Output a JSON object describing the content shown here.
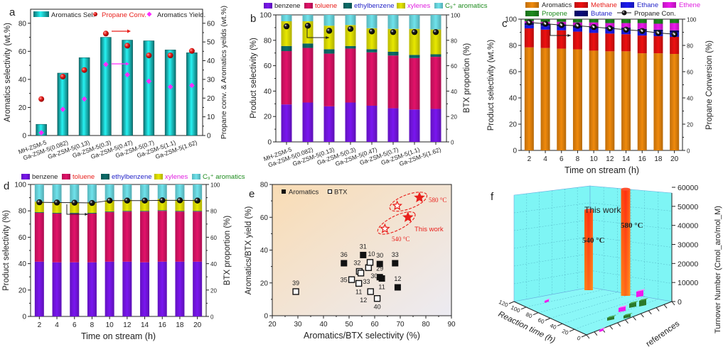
{
  "figure": {
    "panel_labels": [
      "a",
      "b",
      "c",
      "d",
      "e",
      "f"
    ]
  },
  "chart_data": [
    {
      "panel": "a",
      "type": "bar",
      "categories": [
        "MH-ZSM-5",
        "Ga-ZSM-5(0.082)",
        "Ga-ZSM-5(0.13)",
        "Ga-ZSM-5(0.3)",
        "Ga-ZSM-5(0.47)",
        "Ga-ZSM-5(0.7)",
        "Ga-ZSM-5(1.1)",
        "Ga-ZSM-5(1.62)"
      ],
      "series": [
        {
          "name": "Aromatics Sel.",
          "axis": "left",
          "kind": "bar",
          "color": "#19d6d6",
          "values": [
            8,
            44.5,
            55.5,
            70,
            68,
            67.5,
            61,
            59
          ]
        },
        {
          "name": "Propane Conv.",
          "axis": "right",
          "kind": "scatter",
          "marker": "circle",
          "color": "#e8201c",
          "values": [
            19.5,
            31.5,
            35,
            54.5,
            48,
            42.8,
            42.8,
            45.2
          ]
        },
        {
          "name": "Aromatics Yield.",
          "axis": "right",
          "kind": "scatter",
          "marker": "diamond",
          "color": "#ff2bff",
          "values": [
            1.5,
            14,
            19.5,
            38,
            32.5,
            29,
            26,
            26.8
          ]
        }
      ],
      "legend": [
        "Aromatics Sel.",
        "Propane Conv.",
        "Aromatics Yield."
      ],
      "legend_colors": [
        "#222222",
        "#e8201c",
        "#222222"
      ],
      "xlabel": "",
      "ylabel": "Aromatics selectivity (wt.%)",
      "y2label": "Propane conv. & Aromatics yeilds (wt.%)",
      "ylim": [
        0,
        90
      ],
      "y2lim": [
        0,
        67.5
      ],
      "yticks": [
        0,
        20,
        40,
        60,
        80
      ],
      "y2ticks": [
        0,
        10,
        20,
        30,
        40,
        50,
        60
      ],
      "annotations": [
        "arrow-right (Propane Conv. -> right axis)",
        "arrow-right (Aromatics Yield -> right axis)"
      ]
    },
    {
      "panel": "b",
      "type": "bar",
      "stacked": true,
      "categories": [
        "MH-ZSM-5",
        "Ga-ZSM-5(0.082)",
        "Ga-ZSM-5(0.13)",
        "Ga-ZSM-5(0.3)",
        "Ga-ZSM-5(0.47)",
        "Ga-ZSM-5(0.7)",
        "Ga-ZSM-5(1.1)",
        "Ga-ZSM-5(1.62)"
      ],
      "series": [
        {
          "name": "benzene",
          "color": "#7a16f0",
          "values": [
            29.5,
            31,
            28,
            31,
            28.5,
            26.5,
            25.5,
            26
          ]
        },
        {
          "name": "toluene",
          "color": "#e3126a",
          "values": [
            42,
            43,
            41.5,
            42.5,
            42,
            41.5,
            40.5,
            41
          ]
        },
        {
          "name": "ethylbenzene",
          "color": "#0c6e6a",
          "values": [
            4,
            3.5,
            3.5,
            2,
            2.5,
            3,
            2.5,
            2
          ]
        },
        {
          "name": "xylenes",
          "color": "#e8e800",
          "values": [
            19.5,
            17.5,
            18.5,
            16.5,
            16.5,
            18,
            20.5,
            19.5
          ]
        },
        {
          "name": "C9+ aromatics",
          "color": "#6fe3ec",
          "values": [
            5,
            5,
            8.5,
            8,
            10.5,
            11,
            11,
            11.5
          ]
        }
      ],
      "line": {
        "name": "BTX proportion",
        "axis": "right",
        "values": [
          91,
          91.5,
          87.5,
          89,
          87,
          86.5,
          86.5,
          86.5
        ]
      },
      "legend": [
        "benzene",
        "toluene",
        "ethylbenzene",
        "xylenes",
        "C9+ aromatics"
      ],
      "legend_text_colors": [
        "#222222",
        "#e8201c",
        "#2424c8",
        "#e020e0",
        "#1c8a1c"
      ],
      "ylabel": "Product selectivity (%)",
      "y2label": "BTX proportion (%)",
      "ylim": [
        0,
        100
      ],
      "y2lim": [
        0,
        100
      ],
      "yticks": [
        0,
        20,
        40,
        60,
        80,
        100
      ],
      "y2ticks": [
        0,
        20,
        40,
        60,
        80,
        100
      ]
    },
    {
      "panel": "c",
      "type": "bar",
      "stacked": true,
      "categories": [
        "2",
        "4",
        "6",
        "8",
        "10",
        "12",
        "14",
        "16",
        "18",
        "20"
      ],
      "series": [
        {
          "name": "Aromatics",
          "color": "#f08a0c",
          "values": [
            78.5,
            78,
            77.5,
            77,
            76,
            75.5,
            75.5,
            74,
            74,
            73.5
          ]
        },
        {
          "name": "Methane",
          "color": "#ee1010",
          "values": [
            14.5,
            14,
            14,
            13.5,
            13.5,
            13.5,
            13,
            13.5,
            13,
            13
          ]
        },
        {
          "name": "Ethane",
          "color": "#1c1cf0",
          "values": [
            2.5,
            3,
            3,
            3,
            3.5,
            3.5,
            3.5,
            3.5,
            3.5,
            3.5
          ]
        },
        {
          "name": "Butane",
          "color": "#08087a",
          "values": [
            1.5,
            1.5,
            1.5,
            1.5,
            1.5,
            1.5,
            1.5,
            1.5,
            1.5,
            1.5
          ]
        },
        {
          "name": "Ethene",
          "color": "#ee18ee",
          "values": [
            1.5,
            1.5,
            2,
            2.5,
            3,
            3,
            3.5,
            4.5,
            4.5,
            5.5
          ]
        },
        {
          "name": "Propene",
          "color": "#1e8a1e",
          "values": [
            1.5,
            2,
            2,
            2.5,
            2.5,
            3,
            3,
            3,
            3.5,
            3
          ]
        }
      ],
      "line": {
        "name": "Propane Con.",
        "axis": "right",
        "values": [
          97.5,
          96.5,
          95.5,
          95,
          94,
          93,
          92,
          91,
          89.5,
          88.5
        ]
      },
      "legend": [
        "Aromatics",
        "Methane",
        "Ethane",
        "Ethene",
        "Propene",
        "Butane",
        "Propane Con."
      ],
      "legend_text_colors": [
        "#222222",
        "#e8201c",
        "#2424c8",
        "#e020e0",
        "#1c8a1c",
        "#2424c8",
        "#222222"
      ],
      "xlabel": "Time on stream (h)",
      "ylabel": "Product selectivity (wt.%)",
      "y2label": "Propane Conversion (%)",
      "ylim": [
        0,
        100
      ],
      "y2lim": [
        0,
        100
      ],
      "yticks": [
        0,
        20,
        40,
        60,
        80,
        100
      ],
      "y2ticks": [
        0,
        20,
        40,
        60,
        80,
        100
      ]
    },
    {
      "panel": "d",
      "type": "bar",
      "stacked": true,
      "categories": [
        "2",
        "4",
        "6",
        "8",
        "10",
        "12",
        "14",
        "16",
        "18",
        "20"
      ],
      "series": [
        {
          "name": "benzene",
          "color": "#7a16f0",
          "values": [
            41.5,
            41,
            41,
            41,
            41.5,
            41.5,
            41,
            41.5,
            41.5,
            41.5
          ]
        },
        {
          "name": "toluene",
          "color": "#e3126a",
          "values": [
            37,
            37,
            37,
            37,
            37.5,
            38,
            38.5,
            38.5,
            38,
            38
          ]
        },
        {
          "name": "ethylbenzene",
          "color": "#0c6e6a",
          "values": [
            0.5,
            0.5,
            0.5,
            0.5,
            0.5,
            0.5,
            0.5,
            0.5,
            0.5,
            0.5
          ]
        },
        {
          "name": "xylenes",
          "color": "#e8e800",
          "values": [
            8,
            8,
            8,
            8,
            8.5,
            8.5,
            8,
            8.5,
            8.5,
            8.5
          ]
        },
        {
          "name": "C9+ aromatics",
          "color": "#6fe3ec",
          "values": [
            13,
            13.5,
            13.5,
            13.5,
            12,
            11.5,
            12,
            11,
            11.5,
            11.5
          ]
        }
      ],
      "line": {
        "name": "BTX proportion",
        "axis": "right",
        "values": [
          86.5,
          86.3,
          86.2,
          86,
          87.8,
          87.8,
          87.8,
          88,
          88,
          87.8
        ]
      },
      "legend": [
        "benzene",
        "toluene",
        "ethylbenzene",
        "xylenes",
        "C9+ aromatics"
      ],
      "legend_text_colors": [
        "#222222",
        "#e8201c",
        "#2424c8",
        "#e020e0",
        "#1c8a1c"
      ],
      "xlabel": "Time on stream (h)",
      "ylabel": "Product selectivity (%)",
      "y2label": "BTX proportion (%)",
      "ylim": [
        0,
        100
      ],
      "y2lim": [
        0,
        100
      ],
      "yticks": [
        0,
        20,
        40,
        60,
        80,
        100
      ],
      "y2ticks": [
        0,
        20,
        40,
        60,
        80,
        100
      ]
    },
    {
      "panel": "e",
      "type": "scatter",
      "series": [
        {
          "name": "Aromatics",
          "marker": "filled-square",
          "points": [
            {
              "x": 48,
              "y": 32,
              "label": "36"
            },
            {
              "x": 55.5,
              "y": 37,
              "label": "31"
            },
            {
              "x": 62,
              "y": 31.5,
              "label": "30"
            },
            {
              "x": 68,
              "y": 32,
              "label": "33"
            },
            {
              "x": 62,
              "y": 23.5,
              "label": "29"
            },
            {
              "x": 62.8,
              "y": 22.7,
              "label": "11"
            },
            {
              "x": 69,
              "y": 17.3,
              "label": "12"
            }
          ]
        },
        {
          "name": "BTX",
          "marker": "open-square",
          "points": [
            {
              "x": 29.2,
              "y": 14.7,
              "label": "39"
            },
            {
              "x": 51,
              "y": 22,
              "label": "35"
            },
            {
              "x": 54,
              "y": 27,
              "label": "32"
            },
            {
              "x": 54.6,
              "y": 26,
              "label": "33"
            },
            {
              "x": 57.6,
              "y": 29.3,
              "label": "30"
            },
            {
              "x": 58.2,
              "y": 32.5,
              "label": "10"
            },
            {
              "x": 53.8,
              "y": 19.7,
              "label": "11"
            },
            {
              "x": 58.4,
              "y": 14.7,
              "label": "12"
            },
            {
              "x": 61,
              "y": 10.5,
              "label": "40"
            }
          ]
        },
        {
          "name": "This work (Aromatics)",
          "marker": "filled-star",
          "color": "#e8201c",
          "points": [
            {
              "x": 73,
              "y": 60,
              "label": "540 °C"
            },
            {
              "x": 77.5,
              "y": 72,
              "label": "580 °C"
            }
          ]
        },
        {
          "name": "This work (BTX)",
          "marker": "open-star",
          "color": "#e8201c",
          "points": [
            {
              "x": 64,
              "y": 53,
              "label": "540 °C"
            },
            {
              "x": 68.8,
              "y": 67,
              "label": "580 °C"
            }
          ]
        }
      ],
      "annotations": [
        "580 °C",
        "This work",
        "540 °C"
      ],
      "legend": [
        "Aromatics",
        "BTX"
      ],
      "xlabel": "Aromatics/BTX selectivity (%)",
      "ylabel": "Aromatics/BTX yield (%)",
      "xlim": [
        20,
        90
      ],
      "ylim": [
        0,
        80
      ],
      "xticks": [
        20,
        30,
        40,
        50,
        60,
        70,
        80,
        90
      ],
      "yticks": [
        0,
        20,
        40,
        60,
        80
      ]
    },
    {
      "panel": "f",
      "type": "bar",
      "is_3d": true,
      "series": [
        {
          "name": "This work",
          "color": "#ff5a14",
          "points": [
            {
              "label": "540 °C",
              "reaction_time_h": 60,
              "tof": 48000
            },
            {
              "label": "580 °C",
              "reaction_time_h": 30,
              "tof": 59000
            }
          ]
        },
        {
          "name": "references",
          "points": [
            {
              "color": "#ee18ee",
              "reaction_time_h": 110,
              "tof": 500
            },
            {
              "color": "#ee18ee",
              "reaction_time_h": 10,
              "tof": 500
            },
            {
              "color": "#ee18ee",
              "reaction_time_h": 15,
              "tof": 3000
            },
            {
              "color": "#ee18ee",
              "reaction_time_h": 5,
              "tof": 4000
            },
            {
              "color": "#2a7a2a",
              "reaction_time_h": 10,
              "tof": 1500
            },
            {
              "color": "#2a7a2a",
              "reaction_time_h": 8,
              "tof": 2000
            },
            {
              "color": "#2a7a2a",
              "reaction_time_h": 5,
              "tof": 3500
            },
            {
              "color": "#2a7a2a",
              "reaction_time_h": 3,
              "tof": 4000
            }
          ]
        }
      ],
      "annotations": [
        "This work",
        "540 °C",
        "580 °C"
      ],
      "xlabel": "Reaction time (h)",
      "ylabel": "references",
      "zlabel": "Turnover Number (Cmol_aro/mol_M)",
      "xticks": [
        0,
        20,
        40,
        60,
        80,
        100,
        120
      ],
      "zticks": [
        0,
        10000,
        20000,
        30000,
        40000,
        50000,
        60000
      ],
      "zlim": [
        0,
        60000
      ]
    }
  ]
}
